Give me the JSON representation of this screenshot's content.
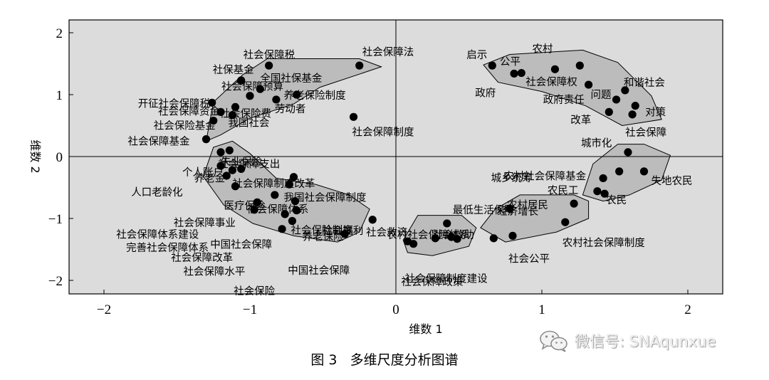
{
  "chart_data": {
    "type": "scatter",
    "xlabel": "维数 1",
    "ylabel": "维数 2",
    "xlim": [
      -2.25,
      2.25
    ],
    "ylim": [
      -2.2,
      2.2
    ],
    "xticks": [
      "−2",
      "−1",
      "0",
      "1",
      "2"
    ],
    "yticks": [
      "2",
      "1",
      "0",
      "−1",
      "−2"
    ],
    "grid": false,
    "cluster_shading": "light gray",
    "points": [
      {
        "label": "社会保障税",
        "x": -0.87,
        "y": 1.47
      },
      {
        "label": "社会保障法",
        "x": -0.25,
        "y": 1.47
      },
      {
        "label": "社保基金",
        "x": -1.06,
        "y": 1.23
      },
      {
        "label": "全国社保基金",
        "x": -0.93,
        "y": 1.09
      },
      {
        "label": "社会保障预算",
        "x": -1.0,
        "y": 0.98
      },
      {
        "label": "养老保险制度",
        "x": -0.68,
        "y": 1.0
      },
      {
        "label": "开征社会保障税",
        "x": -1.26,
        "y": 0.87
      },
      {
        "label": "劳动者",
        "x": -0.82,
        "y": 0.92
      },
      {
        "label": "社会保障资金",
        "x": -1.2,
        "y": 0.72
      },
      {
        "label": "社会保险费",
        "x": -1.1,
        "y": 0.8
      },
      {
        "label": "社会保险基金",
        "x": -1.25,
        "y": 0.58
      },
      {
        "label": "我国社会",
        "x": -1.12,
        "y": 0.67
      },
      {
        "label": "社会保障制度",
        "x": -0.29,
        "y": 0.64
      },
      {
        "label": "社会保障基金",
        "x": -1.3,
        "y": 0.28
      },
      {
        "label": "失业保险",
        "x": -1.2,
        "y": 0.07
      },
      {
        "label": "社会保障支出",
        "x": -1.14,
        "y": 0.1
      },
      {
        "label": "个人账户",
        "x": -1.2,
        "y": -0.15
      },
      {
        "label": "社会保障制度改革",
        "x": -1.12,
        "y": -0.22
      },
      {
        "label": "养老金",
        "x": -1.06,
        "y": -0.2
      },
      {
        "label": "人口老龄化",
        "x": -1.16,
        "y": -0.31
      },
      {
        "label": "医疗保险",
        "x": -1.1,
        "y": -0.48
      },
      {
        "label": "社会保障体系",
        "x": -0.73,
        "y": -0.45
      },
      {
        "label": "我国社会保障制度",
        "x": -0.7,
        "y": -0.33
      },
      {
        "label": "社会保障事业",
        "x": -0.83,
        "y": -0.62
      },
      {
        "label": "社会保险制度",
        "x": -0.69,
        "y": -0.72
      },
      {
        "label": "社会保障体系建设",
        "x": -0.95,
        "y": -0.74
      },
      {
        "label": "养老保险",
        "x": -0.68,
        "y": -0.87
      },
      {
        "label": "完善社会保障体系",
        "x": -0.97,
        "y": -0.86
      },
      {
        "label": "社会保障改革",
        "x": -0.76,
        "y": -0.93
      },
      {
        "label": "社会保障水平",
        "x": -0.71,
        "y": -1.04
      },
      {
        "label": "社会保险",
        "x": -0.78,
        "y": -1.17
      },
      {
        "label": "中国社会保障",
        "x": -0.35,
        "y": -1.25
      },
      {
        "label": "中国社会保障",
        "x": -0.16,
        "y": -1.02
      },
      {
        "label": "启示",
        "x": 0.66,
        "y": 1.47
      },
      {
        "label": "公平",
        "x": 0.81,
        "y": 1.34
      },
      {
        "label": "政府",
        "x": 0.86,
        "y": 1.35
      },
      {
        "label": "农村",
        "x": 1.09,
        "y": 1.41
      },
      {
        "label": "社会保障权",
        "x": 1.26,
        "y": 1.47
      },
      {
        "label": "政府责任",
        "x": 1.32,
        "y": 1.16
      },
      {
        "label": "问题",
        "x": 1.51,
        "y": 0.92
      },
      {
        "label": "和谐社会",
        "x": 1.57,
        "y": 1.07
      },
      {
        "label": "对策",
        "x": 1.64,
        "y": 0.82
      },
      {
        "label": "改革",
        "x": 1.46,
        "y": 0.72
      },
      {
        "label": "社会保障",
        "x": 1.62,
        "y": 0.68
      },
      {
        "label": "城市化",
        "x": 1.59,
        "y": 0.07
      },
      {
        "label": "农村社会保障基金",
        "x": 1.42,
        "y": -0.35
      },
      {
        "label": "城乡统筹",
        "x": 1.53,
        "y": -0.24
      },
      {
        "label": "失地农民",
        "x": 1.7,
        "y": -0.24
      },
      {
        "label": "农民工",
        "x": 1.38,
        "y": -0.56
      },
      {
        "label": "农民",
        "x": 1.43,
        "y": -0.6
      },
      {
        "label": "农村居民",
        "x": 0.78,
        "y": -0.84
      },
      {
        "label": "经济增长",
        "x": 1.22,
        "y": -0.76
      },
      {
        "label": "农村社会保障制度",
        "x": 1.16,
        "y": -1.06
      },
      {
        "label": "社会公平",
        "x": 0.8,
        "y": -1.28
      },
      {
        "label": "农村社会保障体系",
        "x": 0.67,
        "y": -1.32
      },
      {
        "label": "最低生活保障",
        "x": 0.35,
        "y": -1.08
      },
      {
        "label": "社会救助",
        "x": 0.38,
        "y": -1.3
      },
      {
        "label": "社会救济",
        "x": 0.42,
        "y": -1.33
      },
      {
        "label": "社会福利",
        "x": 0.08,
        "y": -1.37
      },
      {
        "label": "社会保障制度建设",
        "x": 0.12,
        "y": -1.41
      },
      {
        "label": "社会保障政策",
        "x": 0.27,
        "y": -1.32
      }
    ]
  },
  "caption": {
    "figure_no": "图 3",
    "title": "多维尺度分析图谱"
  },
  "watermark": {
    "text": "微信号: SNAqunxue",
    "icon": "wechat-icon"
  }
}
